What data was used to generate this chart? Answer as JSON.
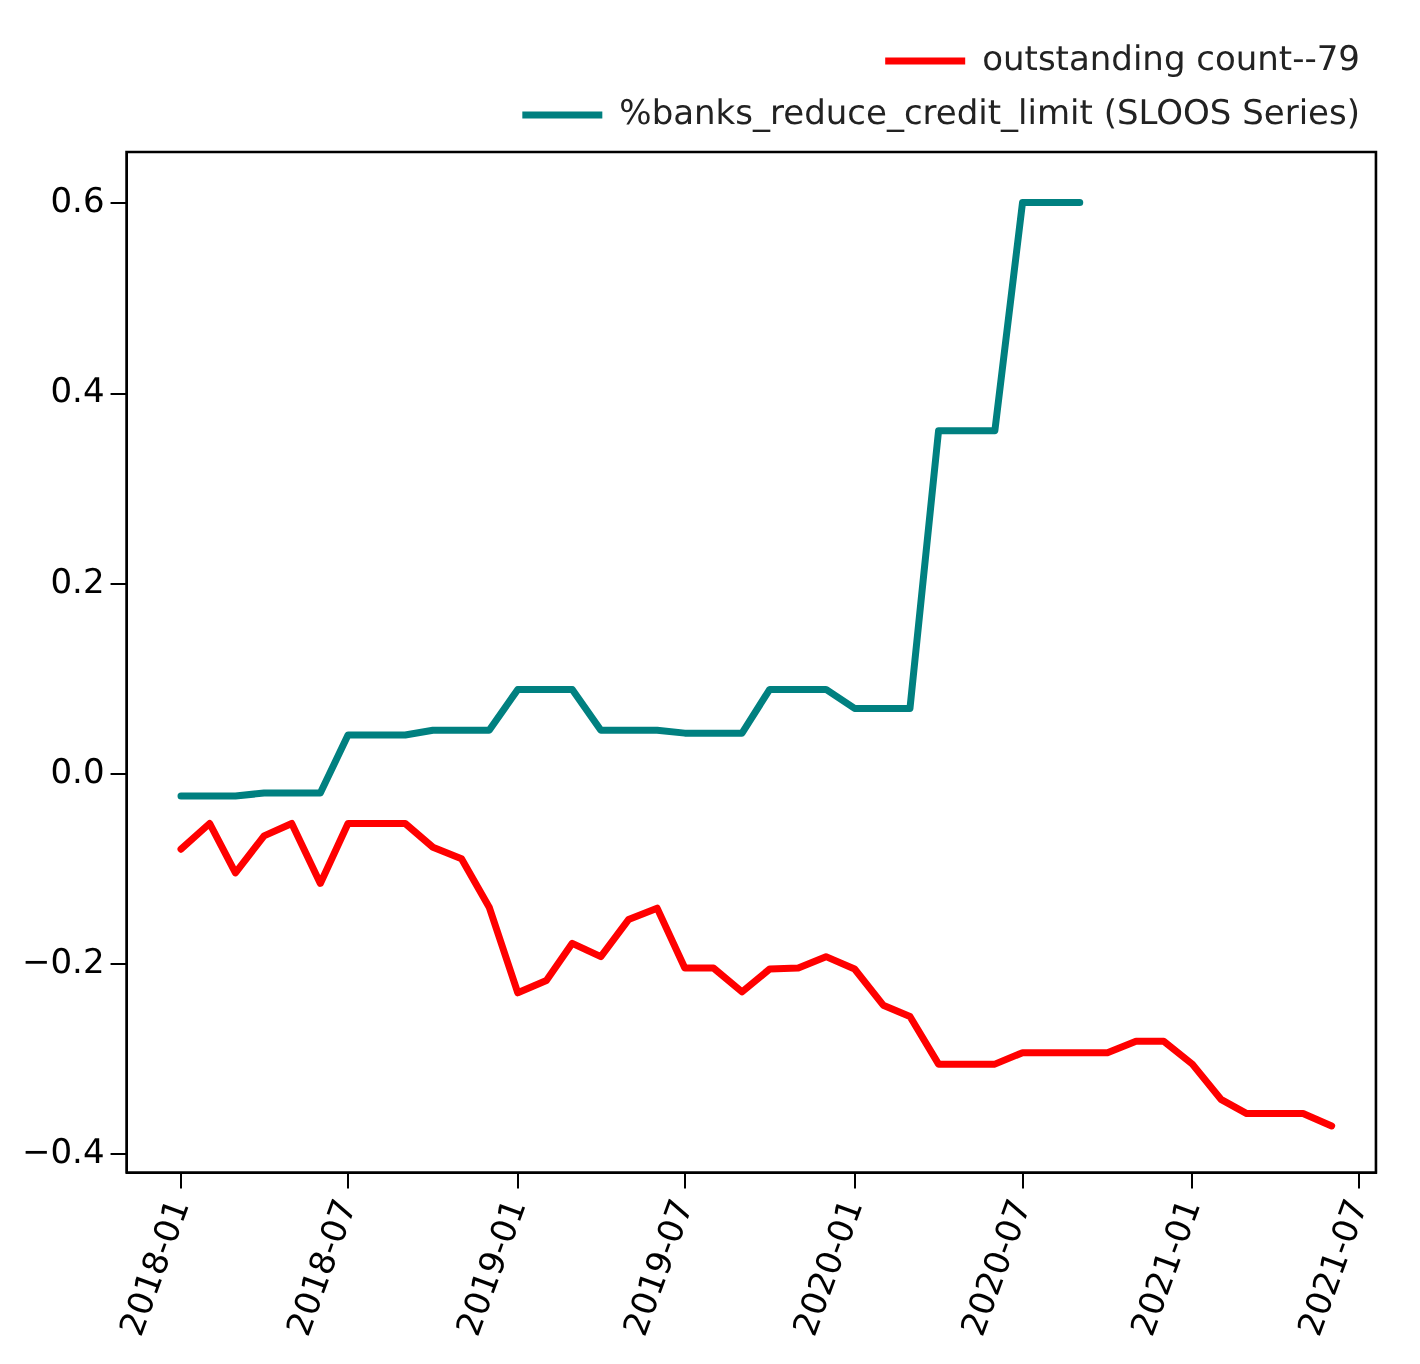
{
  "chart_data": {
    "type": "line",
    "x": [
      "2018-01",
      "2018-02",
      "2018-03",
      "2018-04",
      "2018-05",
      "2018-06",
      "2018-07",
      "2018-08",
      "2018-09",
      "2018-10",
      "2018-11",
      "2018-12",
      "2019-01",
      "2019-02",
      "2019-03",
      "2019-04",
      "2019-05",
      "2019-06",
      "2019-07",
      "2019-08",
      "2019-09",
      "2019-10",
      "2019-11",
      "2019-12",
      "2020-01",
      "2020-02",
      "2020-03",
      "2020-04",
      "2020-05",
      "2020-06",
      "2020-07",
      "2020-08",
      "2020-09",
      "2020-10",
      "2020-11",
      "2020-12",
      "2021-01",
      "2021-02",
      "2021-03",
      "2021-04",
      "2021-05",
      "2021-06"
    ],
    "series": [
      {
        "name": "outstanding count--79",
        "color": "#ff0000",
        "values": [
          -0.079,
          -0.052,
          -0.104,
          -0.065,
          -0.052,
          -0.115,
          -0.052,
          -0.052,
          -0.052,
          -0.077,
          -0.089,
          -0.14,
          -0.23,
          -0.217,
          -0.178,
          -0.192,
          -0.153,
          -0.141,
          -0.204,
          -0.204,
          -0.229,
          -0.205,
          -0.204,
          -0.192,
          -0.205,
          -0.243,
          -0.255,
          -0.305,
          -0.305,
          -0.305,
          -0.293,
          -0.293,
          -0.293,
          -0.293,
          -0.281,
          -0.281,
          -0.305,
          -0.342,
          -0.357,
          -0.357,
          -0.357,
          -0.37
        ]
      },
      {
        "name": "%banks_reduce_credit_limit (SLOOS Series)",
        "color": "#008080",
        "values": [
          -0.023,
          -0.023,
          -0.023,
          -0.02,
          -0.02,
          -0.02,
          0.041,
          0.041,
          0.041,
          0.046,
          0.046,
          0.046,
          0.089,
          0.089,
          0.089,
          0.046,
          0.046,
          0.046,
          0.043,
          0.043,
          0.043,
          0.089,
          0.089,
          0.089,
          0.069,
          0.069,
          0.069,
          0.361,
          0.361,
          0.361,
          0.601,
          0.601,
          0.601,
          null,
          null,
          null,
          null,
          null,
          null,
          null,
          null,
          null
        ]
      }
    ],
    "xlim": [
      "2017-11-03",
      "2021-07-19"
    ],
    "xticks": [
      "2018-01",
      "2018-07",
      "2019-01",
      "2019-07",
      "2020-01",
      "2020-07",
      "2021-01",
      "2021-07"
    ],
    "ylim": [
      -0.419,
      0.654
    ],
    "yticks": [
      {
        "value": -0.4,
        "label": "−0.4"
      },
      {
        "value": -0.2,
        "label": "−0.2"
      },
      {
        "value": 0,
        "label": "0.0"
      },
      {
        "value": 0.2,
        "label": "0.2"
      },
      {
        "value": 0.4,
        "label": "0.4"
      },
      {
        "value": 0.6,
        "label": "0.6"
      }
    ],
    "grid": false,
    "legend": "top right",
    "marker": "none",
    "line_style": "solid"
  }
}
